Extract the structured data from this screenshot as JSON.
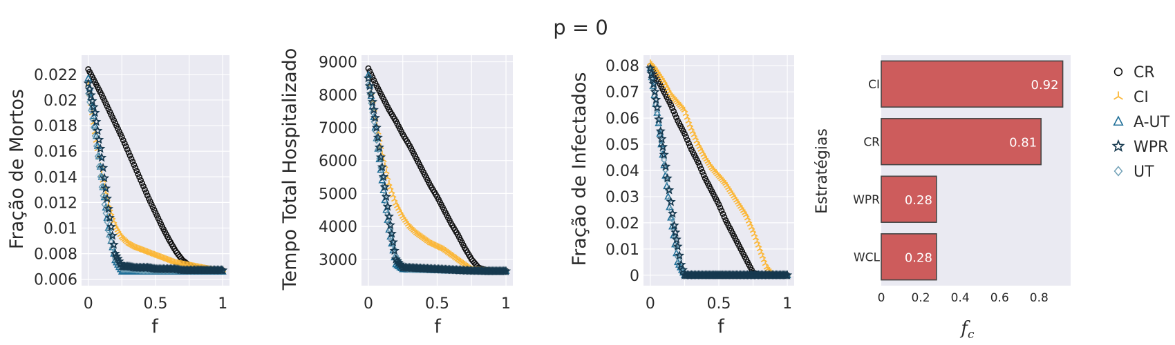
{
  "title": "p = 0",
  "colors": {
    "CR": "#111111",
    "CI": "#fbb738",
    "A-UT": "#1f6f98",
    "WPR": "#16394f",
    "UT": "#6e9fb5",
    "bar_fill": "#cd5c5c",
    "bar_edge": "#444444"
  },
  "legend": [
    {
      "name": "CR",
      "marker": "circle-open"
    },
    {
      "name": "CI",
      "marker": "tri-y"
    },
    {
      "name": "A-UT",
      "marker": "triangle-open"
    },
    {
      "name": "WPR",
      "marker": "star"
    },
    {
      "name": "UT",
      "marker": "diamond-open"
    }
  ],
  "chart_data": [
    {
      "type": "scatter",
      "xlabel": "f",
      "ylabel": "Fração de Mortos",
      "xlim": [
        -0.05,
        1.05
      ],
      "ylim": [
        0.0055,
        0.0235
      ],
      "xticks": [
        "0",
        "0.5",
        "1"
      ],
      "yticks": [
        "0.006",
        "0.008",
        "0.01",
        "0.012",
        "0.014",
        "0.016",
        "0.018",
        "0.02",
        "0.022"
      ],
      "series": [
        {
          "name": "CR",
          "marker": "circle-open",
          "x": [
            0.0,
            0.05,
            0.1,
            0.15,
            0.2,
            0.25,
            0.3,
            0.35,
            0.4,
            0.45,
            0.5,
            0.55,
            0.6,
            0.65,
            0.7,
            0.75,
            0.8,
            0.85,
            0.9,
            0.95,
            1.0
          ],
          "y": [
            0.0224,
            0.0214,
            0.0204,
            0.0193,
            0.0182,
            0.0171,
            0.0159,
            0.0147,
            0.0135,
            0.0123,
            0.0112,
            0.0101,
            0.0091,
            0.0082,
            0.0075,
            0.0071,
            0.0069,
            0.0068,
            0.0067,
            0.0067,
            0.0067
          ]
        },
        {
          "name": "CI",
          "marker": "tri-y",
          "x": [
            0.0,
            0.05,
            0.1,
            0.15,
            0.2,
            0.25,
            0.3,
            0.35,
            0.4,
            0.45,
            0.5,
            0.55,
            0.6,
            0.65,
            0.7,
            0.75,
            0.8,
            0.85,
            0.9,
            0.95,
            1.0
          ],
          "y": [
            0.0212,
            0.0175,
            0.0142,
            0.0118,
            0.0102,
            0.0093,
            0.0088,
            0.0085,
            0.0083,
            0.0081,
            0.0079,
            0.0077,
            0.0075,
            0.0073,
            0.0072,
            0.0071,
            0.007,
            0.0069,
            0.0068,
            0.0067,
            0.0067
          ]
        },
        {
          "name": "A-UT",
          "marker": "triangle-open",
          "x": [
            0.0,
            0.05,
            0.1,
            0.15,
            0.2,
            0.25,
            0.3,
            0.35,
            0.4,
            0.45,
            0.5,
            0.55,
            0.6,
            0.65,
            0.7,
            0.75,
            0.8,
            0.85,
            0.9,
            0.95,
            1.0
          ],
          "y": [
            0.0217,
            0.018,
            0.014,
            0.01,
            0.0075,
            0.0066,
            0.0066,
            0.0066,
            0.0066,
            0.0066,
            0.0066,
            0.0066,
            0.0066,
            0.0066,
            0.0066,
            0.0066,
            0.0066,
            0.0066,
            0.0066,
            0.0066,
            0.0066
          ]
        },
        {
          "name": "WPR",
          "marker": "star",
          "x": [
            0.0,
            0.05,
            0.1,
            0.15,
            0.2,
            0.25,
            0.3,
            0.35,
            0.4,
            0.45,
            0.5,
            0.55,
            0.6,
            0.65,
            0.7,
            0.75,
            0.8,
            0.85,
            0.9,
            0.95,
            1.0
          ],
          "y": [
            0.0213,
            0.019,
            0.0155,
            0.0115,
            0.008,
            0.007,
            0.007,
            0.0069,
            0.0069,
            0.0069,
            0.0068,
            0.0068,
            0.0068,
            0.0068,
            0.0067,
            0.0067,
            0.0067,
            0.0067,
            0.0067,
            0.0067,
            0.0067
          ]
        },
        {
          "name": "UT",
          "marker": "diamond-open",
          "x": [
            0.0,
            0.05,
            0.1,
            0.15,
            0.2,
            0.25,
            0.3,
            0.4,
            0.5,
            0.6,
            0.7,
            0.8,
            0.9,
            1.0
          ],
          "y": [
            0.0205,
            0.0172,
            0.0132,
            0.0098,
            0.0076,
            0.0068,
            0.0068,
            0.0067,
            0.0067,
            0.0067,
            0.0067,
            0.0067,
            0.0067,
            0.0067
          ]
        }
      ]
    },
    {
      "type": "scatter",
      "xlabel": "f",
      "ylabel": "Tempo Total Hospitalizado",
      "xlim": [
        -0.05,
        1.05
      ],
      "ylim": [
        2200,
        9200
      ],
      "xticks": [
        "0",
        "0.5",
        "1"
      ],
      "yticks": [
        "3000",
        "4000",
        "5000",
        "6000",
        "7000",
        "8000",
        "9000"
      ],
      "series": [
        {
          "name": "CR",
          "marker": "circle-open",
          "x": [
            0.0,
            0.05,
            0.1,
            0.15,
            0.2,
            0.25,
            0.3,
            0.35,
            0.4,
            0.45,
            0.5,
            0.55,
            0.6,
            0.65,
            0.7,
            0.75,
            0.8,
            0.85,
            0.9,
            0.95,
            1.0
          ],
          "y": [
            8800,
            8350,
            7950,
            7550,
            7200,
            6800,
            6450,
            6050,
            5650,
            5250,
            4900,
            4500,
            4100,
            3750,
            3350,
            3000,
            2750,
            2680,
            2660,
            2650,
            2650
          ]
        },
        {
          "name": "CI",
          "marker": "tri-y",
          "x": [
            0.0,
            0.05,
            0.1,
            0.15,
            0.2,
            0.25,
            0.3,
            0.35,
            0.4,
            0.45,
            0.5,
            0.55,
            0.6,
            0.65,
            0.7,
            0.75,
            0.8,
            0.85,
            0.9,
            0.95,
            1.0
          ],
          "y": [
            8550,
            7300,
            6200,
            5300,
            4700,
            4300,
            4000,
            3800,
            3650,
            3500,
            3400,
            3300,
            3150,
            3000,
            2850,
            2700,
            2680,
            2660,
            2650,
            2650,
            2650
          ]
        },
        {
          "name": "A-UT",
          "marker": "triangle-open",
          "x": [
            0.0,
            0.05,
            0.1,
            0.15,
            0.2,
            0.25,
            0.3,
            0.4,
            0.5,
            0.6,
            0.7,
            0.8,
            0.9,
            1.0
          ],
          "y": [
            8600,
            7000,
            5400,
            3900,
            2850,
            2700,
            2690,
            2680,
            2670,
            2660,
            2650,
            2650,
            2650,
            2650
          ]
        },
        {
          "name": "WPR",
          "marker": "star",
          "x": [
            0.0,
            0.05,
            0.1,
            0.15,
            0.2,
            0.25,
            0.3,
            0.35,
            0.4,
            0.45,
            0.5,
            0.55,
            0.6,
            0.65,
            0.7,
            0.75,
            0.8,
            0.85,
            0.9,
            0.95,
            1.0
          ],
          "y": [
            8500,
            7300,
            5800,
            4300,
            3000,
            2750,
            2740,
            2730,
            2720,
            2710,
            2700,
            2690,
            2680,
            2670,
            2660,
            2650,
            2650,
            2640,
            2640,
            2640,
            2640
          ]
        },
        {
          "name": "UT",
          "marker": "diamond-open",
          "x": [
            0.0,
            0.05,
            0.1,
            0.15,
            0.2,
            0.25,
            0.3,
            0.4,
            0.5,
            0.6,
            0.7,
            0.8,
            0.9,
            1.0
          ],
          "y": [
            8300,
            6900,
            5500,
            4100,
            3100,
            2750,
            2700,
            2690,
            2680,
            2670,
            2660,
            2650,
            2650,
            2650
          ]
        }
      ]
    },
    {
      "type": "scatter",
      "xlabel": "f",
      "ylabel": "Fração de Infectados",
      "xlim": [
        -0.05,
        1.05
      ],
      "ylim": [
        -0.004,
        0.084
      ],
      "xticks": [
        "0",
        "0.5",
        "1"
      ],
      "yticks": [
        "0",
        "0.01",
        "0.02",
        "0.03",
        "0.04",
        "0.05",
        "0.06",
        "0.07",
        "0.08"
      ],
      "series": [
        {
          "name": "CR",
          "marker": "circle-open",
          "x": [
            0.0,
            0.05,
            0.1,
            0.15,
            0.2,
            0.25,
            0.3,
            0.35,
            0.4,
            0.45,
            0.5,
            0.55,
            0.6,
            0.65,
            0.7,
            0.75,
            0.8,
            0.85,
            0.9,
            0.95,
            1.0
          ],
          "y": [
            0.08,
            0.075,
            0.07,
            0.065,
            0.059,
            0.054,
            0.048,
            0.043,
            0.037,
            0.032,
            0.027,
            0.021,
            0.016,
            0.011,
            0.006,
            0.001,
            0.0,
            0.0,
            0.0,
            0.0,
            0.0
          ]
        },
        {
          "name": "CI",
          "marker": "tri-y",
          "x": [
            0.0,
            0.05,
            0.1,
            0.15,
            0.2,
            0.25,
            0.3,
            0.35,
            0.4,
            0.45,
            0.5,
            0.55,
            0.6,
            0.65,
            0.7,
            0.75,
            0.8,
            0.85,
            0.9,
            0.95,
            1.0
          ],
          "y": [
            0.081,
            0.078,
            0.074,
            0.069,
            0.066,
            0.063,
            0.056,
            0.05,
            0.045,
            0.041,
            0.038,
            0.035,
            0.031,
            0.027,
            0.023,
            0.017,
            0.01,
            0.003,
            0.0,
            0.0,
            0.0
          ]
        },
        {
          "name": "A-UT",
          "marker": "triangle-open",
          "x": [
            0.0,
            0.05,
            0.1,
            0.15,
            0.2,
            0.25,
            0.3,
            0.4,
            0.5,
            0.6,
            0.7,
            0.8,
            0.9,
            1.0
          ],
          "y": [
            0.079,
            0.062,
            0.042,
            0.022,
            0.005,
            0.0,
            0.0,
            0.0,
            0.0,
            0.0,
            0.0,
            0.0,
            0.0,
            0.0
          ]
        },
        {
          "name": "WPR",
          "marker": "star",
          "x": [
            0.0,
            0.025,
            0.05,
            0.075,
            0.1,
            0.125,
            0.15,
            0.175,
            0.2,
            0.225,
            0.25,
            0.3,
            0.35,
            0.4,
            0.45,
            0.5,
            0.55,
            0.6,
            0.65,
            0.7,
            0.75,
            0.8,
            0.85,
            0.9,
            0.95,
            1.0
          ],
          "y": [
            0.079,
            0.073,
            0.064,
            0.055,
            0.046,
            0.037,
            0.028,
            0.019,
            0.011,
            0.004,
            0.0,
            0.0,
            0.0,
            0.0,
            0.0,
            0.0,
            0.0,
            0.0,
            0.0,
            0.0,
            0.0,
            0.0,
            0.0,
            0.0,
            0.0,
            0.0
          ]
        },
        {
          "name": "UT",
          "marker": "diamond-open",
          "x": [
            0.0,
            0.05,
            0.1,
            0.15,
            0.2,
            0.25,
            0.3,
            0.4,
            0.5,
            0.6,
            0.7,
            0.8,
            0.9,
            1.0
          ],
          "y": [
            0.078,
            0.062,
            0.044,
            0.025,
            0.007,
            0.0,
            0.0,
            0.0,
            0.0,
            0.0,
            0.0,
            0.0,
            0.0,
            0.0
          ]
        }
      ]
    },
    {
      "type": "bar",
      "orientation": "horizontal",
      "xlabel": "f_c",
      "ylabel": "Estratégias",
      "categories": [
        "CI",
        "CR",
        "WPR",
        "WCL"
      ],
      "values": [
        0.92,
        0.81,
        0.28,
        0.28
      ],
      "value_labels": [
        "0.92",
        "0.81",
        "0.28",
        "0.28"
      ],
      "xlim": [
        0,
        0.96
      ],
      "xticks": [
        "0",
        "0.2",
        "0.4",
        "0.6",
        "0.8"
      ]
    }
  ]
}
